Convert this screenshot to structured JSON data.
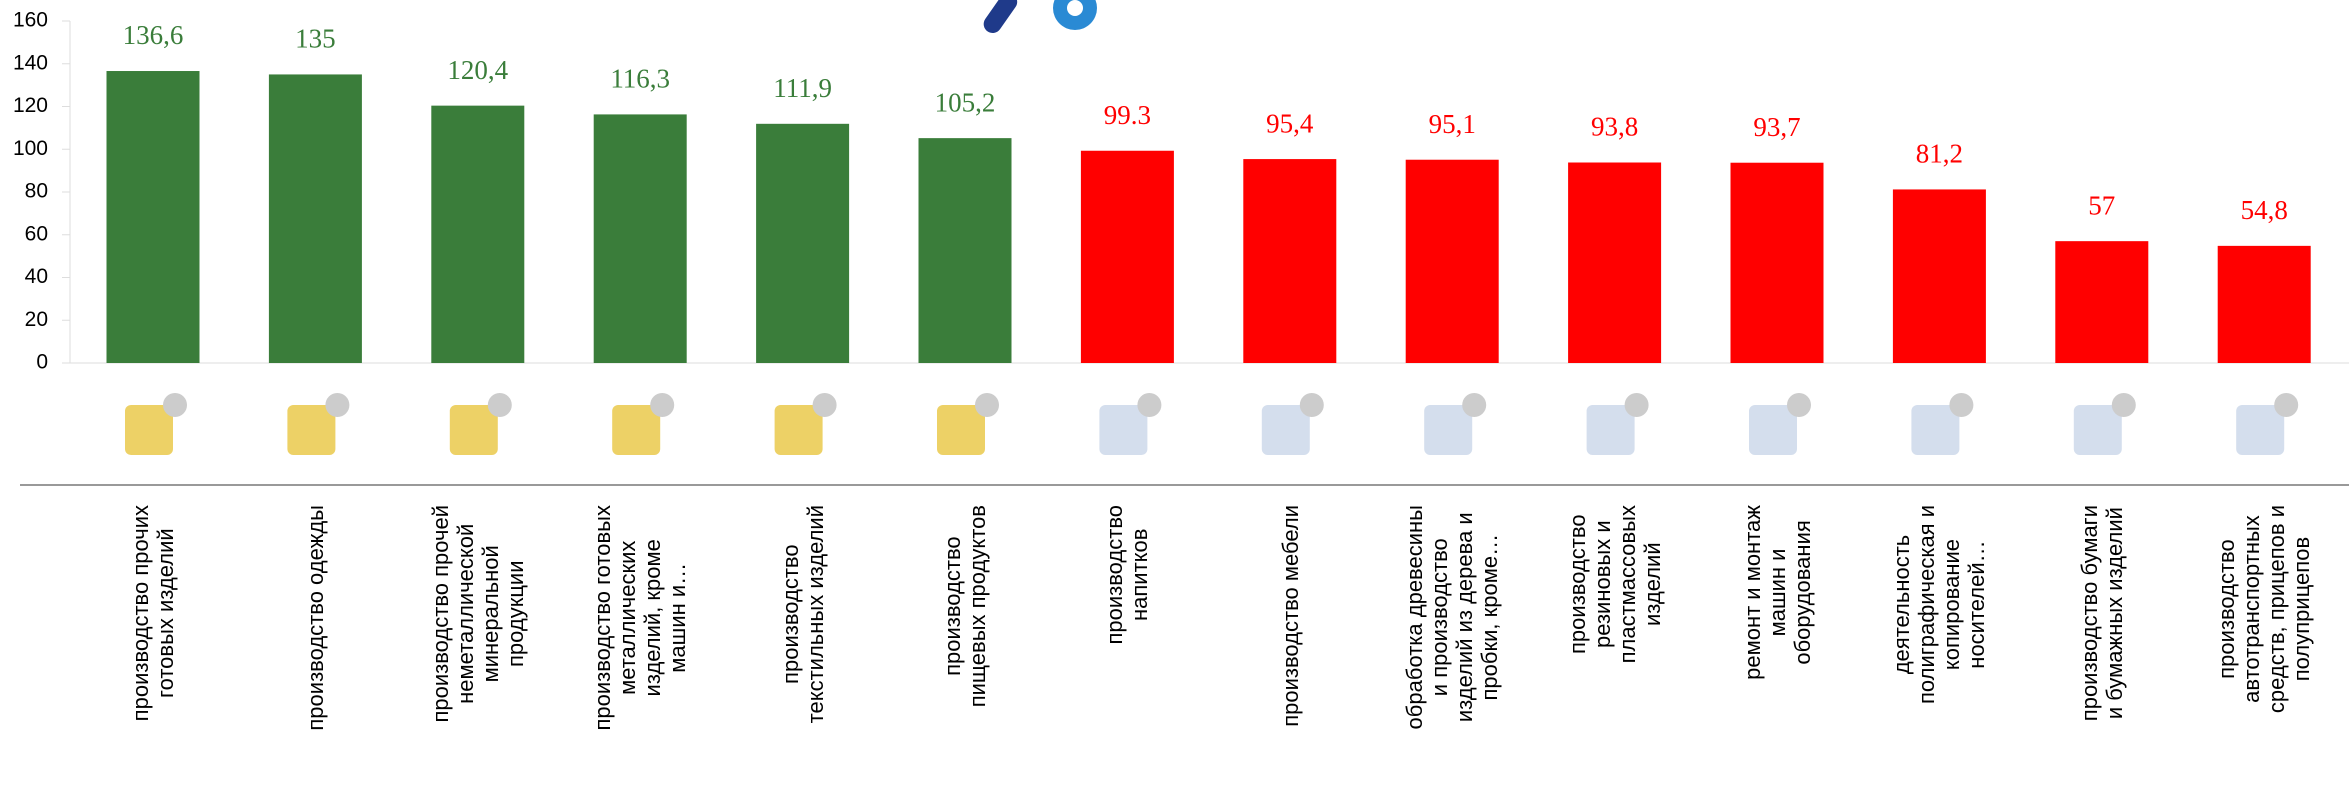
{
  "chart_data": {
    "type": "bar",
    "categories": [
      "производство прочих\nготовых изделий",
      "производство одежды",
      "производство прочей\nнеметаллической\nминеральной\nпродукции",
      "производство готовых\nметаллических\nизделий, кроме\nмашин и…",
      "производство\nтекстильных изделий",
      "производство\nпищевых продуктов",
      "производство\nнапитков",
      "производство мебели",
      "обработка древесины\nи производство\nизделий из  дерева и\nпробки, кроме…",
      "производство\nрезиновых и\nпластмассовых\nизделий",
      "ремонт и монтаж\nмашин и\nоборудования",
      "деятельность\nполиграфическая и\nкопирование\nносителей…",
      "производство бумаги\nи бумажных изделий",
      "производство\nавтотранспортных\nсредств, прицепов и\nполуприцепов"
    ],
    "values": [
      136.6,
      135,
      120.4,
      116.3,
      111.9,
      105.2,
      99.3,
      95.4,
      95.1,
      93.8,
      93.7,
      81.2,
      57,
      54.8
    ],
    "value_labels": [
      "136,6",
      "135",
      "120,4",
      "116,3",
      "111,9",
      "105,2",
      "99.3",
      "95,4",
      "95,1",
      "93,8",
      "93,7",
      "81,2",
      "57",
      "54,8"
    ],
    "colors": [
      "#3a7d3a",
      "#3a7d3a",
      "#3a7d3a",
      "#3a7d3a",
      "#3a7d3a",
      "#3a7d3a",
      "#ff0000",
      "#ff0000",
      "#ff0000",
      "#ff0000",
      "#ff0000",
      "#ff0000",
      "#ff0000",
      "#ff0000"
    ],
    "ylim": [
      0,
      160
    ],
    "yticks": [
      0,
      20,
      40,
      60,
      80,
      100,
      120,
      140,
      160
    ]
  }
}
